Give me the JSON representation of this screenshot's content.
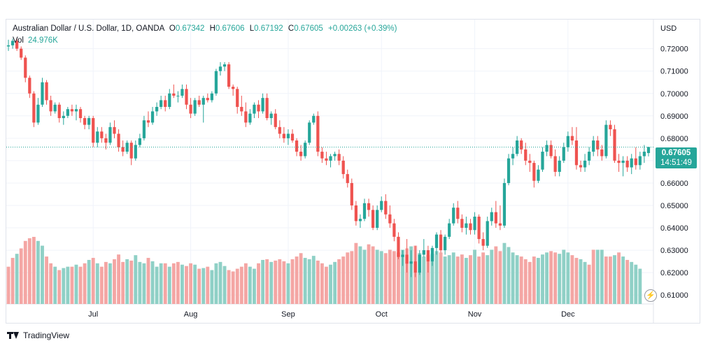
{
  "legend": {
    "symbol": "Australian Dollar / U.S. Dollar, 1D, OANDA",
    "open_label": "O",
    "open": "0.67342",
    "high_label": "H",
    "high": "0.67606",
    "low_label": "L",
    "low": "0.67192",
    "close_label": "C",
    "close": "0.67605",
    "change": "+0.00263 (+0.39%)",
    "vol_label": "Vol",
    "vol_value": "24.976K"
  },
  "axis": {
    "currency": "USD"
  },
  "last_price": {
    "price": "0.67605",
    "countdown": "14:51:49"
  },
  "footer": {
    "brand": "TradingView"
  },
  "colors": {
    "up": "#26a69a",
    "down": "#ef5350",
    "up_vol": "#8fd0c6",
    "down_vol": "#f4a6a4"
  },
  "chart_data": {
    "type": "candlestick",
    "title": "Australian Dollar / U.S. Dollar, 1D, OANDA",
    "ylabel": "USD",
    "ylim": [
      0.606,
      0.733
    ],
    "y_ticks": [
      "0.72000",
      "0.71000",
      "0.70000",
      "0.69000",
      "0.68000",
      "0.67000",
      "0.66000",
      "0.65000",
      "0.64000",
      "0.63000",
      "0.62000",
      "0.61000"
    ],
    "y_tick_values": [
      0.72,
      0.71,
      0.7,
      0.69,
      0.68,
      0.67,
      0.66,
      0.65,
      0.64,
      0.63,
      0.62,
      0.61
    ],
    "x_labels": [
      {
        "label": "Jul",
        "index": 20
      },
      {
        "label": "Aug",
        "index": 43
      },
      {
        "label": "Sep",
        "index": 66
      },
      {
        "label": "Oct",
        "index": 88
      },
      {
        "label": "Nov",
        "index": 110
      },
      {
        "label": "Dec",
        "index": 132
      }
    ],
    "last_price": 0.67605,
    "ohlc": [
      [
        0.721,
        0.724,
        0.719,
        0.7215
      ],
      [
        0.7215,
        0.7245,
        0.72,
        0.7235
      ],
      [
        0.7235,
        0.7248,
        0.719,
        0.72
      ],
      [
        0.72,
        0.721,
        0.715,
        0.716
      ],
      [
        0.716,
        0.717,
        0.705,
        0.707
      ],
      [
        0.707,
        0.708,
        0.698,
        0.7
      ],
      [
        0.7,
        0.701,
        0.685,
        0.687
      ],
      [
        0.687,
        0.698,
        0.686,
        0.695
      ],
      [
        0.695,
        0.707,
        0.694,
        0.705
      ],
      [
        0.705,
        0.706,
        0.695,
        0.697
      ],
      [
        0.697,
        0.699,
        0.69,
        0.692
      ],
      [
        0.692,
        0.696,
        0.691,
        0.695
      ],
      [
        0.695,
        0.696,
        0.687,
        0.689
      ],
      [
        0.689,
        0.692,
        0.686,
        0.69
      ],
      [
        0.69,
        0.694,
        0.689,
        0.693
      ],
      [
        0.693,
        0.695,
        0.69,
        0.692
      ],
      [
        0.692,
        0.695,
        0.688,
        0.693
      ],
      [
        0.693,
        0.694,
        0.687,
        0.689
      ],
      [
        0.689,
        0.69,
        0.684,
        0.686
      ],
      [
        0.686,
        0.69,
        0.684,
        0.689
      ],
      [
        0.689,
        0.69,
        0.676,
        0.678
      ],
      [
        0.678,
        0.685,
        0.676,
        0.683
      ],
      [
        0.683,
        0.685,
        0.678,
        0.68
      ],
      [
        0.68,
        0.682,
        0.675,
        0.678
      ],
      [
        0.678,
        0.687,
        0.677,
        0.685
      ],
      [
        0.685,
        0.688,
        0.68,
        0.682
      ],
      [
        0.682,
        0.684,
        0.674,
        0.676
      ],
      [
        0.676,
        0.679,
        0.672,
        0.674
      ],
      [
        0.674,
        0.679,
        0.673,
        0.678
      ],
      [
        0.678,
        0.679,
        0.668,
        0.671
      ],
      [
        0.671,
        0.679,
        0.67,
        0.677
      ],
      [
        0.677,
        0.682,
        0.676,
        0.68
      ],
      [
        0.68,
        0.69,
        0.679,
        0.688
      ],
      [
        0.688,
        0.692,
        0.685,
        0.687
      ],
      [
        0.687,
        0.694,
        0.686,
        0.692
      ],
      [
        0.692,
        0.696,
        0.69,
        0.694
      ],
      [
        0.694,
        0.699,
        0.693,
        0.697
      ],
      [
        0.697,
        0.699,
        0.692,
        0.694
      ],
      [
        0.694,
        0.702,
        0.693,
        0.7
      ],
      [
        0.7,
        0.704,
        0.698,
        0.699
      ],
      [
        0.699,
        0.701,
        0.696,
        0.699
      ],
      [
        0.699,
        0.704,
        0.698,
        0.702
      ],
      [
        0.702,
        0.704,
        0.693,
        0.695
      ],
      [
        0.695,
        0.698,
        0.689,
        0.691
      ],
      [
        0.691,
        0.698,
        0.69,
        0.697
      ],
      [
        0.697,
        0.699,
        0.694,
        0.695
      ],
      [
        0.695,
        0.699,
        0.687,
        0.698
      ],
      [
        0.698,
        0.7,
        0.696,
        0.697
      ],
      [
        0.697,
        0.701,
        0.696,
        0.7
      ],
      [
        0.7,
        0.711,
        0.699,
        0.71
      ],
      [
        0.71,
        0.714,
        0.708,
        0.712
      ],
      [
        0.712,
        0.714,
        0.71,
        0.713
      ],
      [
        0.713,
        0.714,
        0.702,
        0.703
      ],
      [
        0.703,
        0.704,
        0.699,
        0.702
      ],
      [
        0.702,
        0.703,
        0.691,
        0.694
      ],
      [
        0.694,
        0.699,
        0.69,
        0.692
      ],
      [
        0.692,
        0.696,
        0.685,
        0.687
      ],
      [
        0.687,
        0.693,
        0.686,
        0.691
      ],
      [
        0.691,
        0.696,
        0.689,
        0.695
      ],
      [
        0.695,
        0.697,
        0.689,
        0.692
      ],
      [
        0.692,
        0.7,
        0.691,
        0.698
      ],
      [
        0.698,
        0.7,
        0.688,
        0.689
      ],
      [
        0.689,
        0.692,
        0.686,
        0.691
      ],
      [
        0.691,
        0.693,
        0.684,
        0.685
      ],
      [
        0.685,
        0.688,
        0.68,
        0.682
      ],
      [
        0.682,
        0.685,
        0.678,
        0.68
      ],
      [
        0.68,
        0.684,
        0.677,
        0.682
      ],
      [
        0.682,
        0.684,
        0.678,
        0.679
      ],
      [
        0.679,
        0.68,
        0.672,
        0.674
      ],
      [
        0.674,
        0.677,
        0.67,
        0.672
      ],
      [
        0.672,
        0.679,
        0.671,
        0.678
      ],
      [
        0.678,
        0.688,
        0.677,
        0.687
      ],
      [
        0.687,
        0.691,
        0.686,
        0.69
      ],
      [
        0.69,
        0.692,
        0.672,
        0.674
      ],
      [
        0.674,
        0.676,
        0.669,
        0.671
      ],
      [
        0.671,
        0.674,
        0.668,
        0.67
      ],
      [
        0.67,
        0.673,
        0.667,
        0.672
      ],
      [
        0.672,
        0.674,
        0.67,
        0.673
      ],
      [
        0.673,
        0.675,
        0.668,
        0.67
      ],
      [
        0.67,
        0.672,
        0.662,
        0.664
      ],
      [
        0.664,
        0.666,
        0.658,
        0.66
      ],
      [
        0.66,
        0.662,
        0.648,
        0.65
      ],
      [
        0.65,
        0.652,
        0.641,
        0.643
      ],
      [
        0.643,
        0.646,
        0.64,
        0.644
      ],
      [
        0.644,
        0.653,
        0.643,
        0.651
      ],
      [
        0.651,
        0.653,
        0.645,
        0.648
      ],
      [
        0.648,
        0.65,
        0.639,
        0.64
      ],
      [
        0.64,
        0.65,
        0.639,
        0.648
      ],
      [
        0.648,
        0.654,
        0.647,
        0.652
      ],
      [
        0.652,
        0.655,
        0.644,
        0.646
      ],
      [
        0.646,
        0.65,
        0.64,
        0.642
      ],
      [
        0.642,
        0.644,
        0.634,
        0.636
      ],
      [
        0.636,
        0.638,
        0.626,
        0.627
      ],
      [
        0.627,
        0.63,
        0.623,
        0.628
      ],
      [
        0.628,
        0.635,
        0.62,
        0.624
      ],
      [
        0.624,
        0.63,
        0.618,
        0.625
      ],
      [
        0.625,
        0.632,
        0.618,
        0.62
      ],
      [
        0.62,
        0.63,
        0.619,
        0.628
      ],
      [
        0.628,
        0.635,
        0.627,
        0.63
      ],
      [
        0.63,
        0.632,
        0.62,
        0.625
      ],
      [
        0.625,
        0.632,
        0.623,
        0.631
      ],
      [
        0.631,
        0.638,
        0.628,
        0.637
      ],
      [
        0.637,
        0.639,
        0.629,
        0.63
      ],
      [
        0.63,
        0.637,
        0.628,
        0.636
      ],
      [
        0.636,
        0.644,
        0.635,
        0.642
      ],
      [
        0.642,
        0.651,
        0.641,
        0.649
      ],
      [
        0.649,
        0.652,
        0.642,
        0.644
      ],
      [
        0.644,
        0.646,
        0.638,
        0.64
      ],
      [
        0.64,
        0.645,
        0.637,
        0.642
      ],
      [
        0.642,
        0.644,
        0.637,
        0.639
      ],
      [
        0.639,
        0.647,
        0.637,
        0.645
      ],
      [
        0.645,
        0.646,
        0.633,
        0.635
      ],
      [
        0.635,
        0.638,
        0.63,
        0.632
      ],
      [
        0.632,
        0.645,
        0.631,
        0.643
      ],
      [
        0.643,
        0.649,
        0.641,
        0.647
      ],
      [
        0.647,
        0.652,
        0.64,
        0.642
      ],
      [
        0.642,
        0.65,
        0.639,
        0.641
      ],
      [
        0.641,
        0.662,
        0.64,
        0.66
      ],
      [
        0.66,
        0.673,
        0.659,
        0.671
      ],
      [
        0.671,
        0.676,
        0.668,
        0.673
      ],
      [
        0.673,
        0.681,
        0.672,
        0.679
      ],
      [
        0.679,
        0.68,
        0.673,
        0.675
      ],
      [
        0.675,
        0.678,
        0.668,
        0.67
      ],
      [
        0.67,
        0.673,
        0.665,
        0.669
      ],
      [
        0.669,
        0.67,
        0.658,
        0.661
      ],
      [
        0.661,
        0.668,
        0.66,
        0.666
      ],
      [
        0.666,
        0.676,
        0.665,
        0.674
      ],
      [
        0.674,
        0.679,
        0.672,
        0.677
      ],
      [
        0.677,
        0.679,
        0.671,
        0.672
      ],
      [
        0.672,
        0.675,
        0.663,
        0.665
      ],
      [
        0.665,
        0.672,
        0.663,
        0.67
      ],
      [
        0.67,
        0.678,
        0.669,
        0.676
      ],
      [
        0.676,
        0.683,
        0.674,
        0.681
      ],
      [
        0.681,
        0.685,
        0.677,
        0.679
      ],
      [
        0.679,
        0.685,
        0.666,
        0.668
      ],
      [
        0.668,
        0.67,
        0.665,
        0.667
      ],
      [
        0.667,
        0.673,
        0.665,
        0.67
      ],
      [
        0.67,
        0.676,
        0.668,
        0.674
      ],
      [
        0.674,
        0.681,
        0.672,
        0.679
      ],
      [
        0.679,
        0.681,
        0.672,
        0.675
      ],
      [
        0.675,
        0.677,
        0.67,
        0.672
      ],
      [
        0.672,
        0.688,
        0.671,
        0.686
      ],
      [
        0.686,
        0.688,
        0.681,
        0.684
      ],
      [
        0.684,
        0.686,
        0.669,
        0.67
      ],
      [
        0.67,
        0.673,
        0.665,
        0.669
      ],
      [
        0.669,
        0.672,
        0.663,
        0.67
      ],
      [
        0.67,
        0.672,
        0.665,
        0.667
      ],
      [
        0.667,
        0.673,
        0.664,
        0.671
      ],
      [
        0.671,
        0.676,
        0.666,
        0.668
      ],
      [
        0.668,
        0.674,
        0.666,
        0.672
      ],
      [
        0.672,
        0.677,
        0.669,
        0.674
      ],
      [
        0.6734,
        0.6761,
        0.6719,
        0.6761
      ]
    ],
    "volume": [
      0.55,
      0.68,
      0.74,
      0.82,
      0.93,
      0.97,
      0.99,
      0.93,
      0.86,
      0.7,
      0.6,
      0.55,
      0.5,
      0.53,
      0.55,
      0.55,
      0.58,
      0.55,
      0.6,
      0.65,
      0.68,
      0.6,
      0.55,
      0.62,
      0.6,
      0.66,
      0.73,
      0.62,
      0.66,
      0.64,
      0.72,
      0.62,
      0.6,
      0.68,
      0.63,
      0.55,
      0.6,
      0.6,
      0.55,
      0.6,
      0.62,
      0.58,
      0.56,
      0.6,
      0.58,
      0.52,
      0.53,
      0.55,
      0.5,
      0.6,
      0.62,
      0.56,
      0.5,
      0.48,
      0.52,
      0.55,
      0.6,
      0.55,
      0.52,
      0.6,
      0.65,
      0.66,
      0.62,
      0.64,
      0.66,
      0.63,
      0.6,
      0.66,
      0.7,
      0.75,
      0.68,
      0.66,
      0.71,
      0.64,
      0.6,
      0.55,
      0.58,
      0.62,
      0.66,
      0.7,
      0.76,
      0.78,
      0.9,
      0.85,
      0.8,
      0.88,
      0.85,
      0.8,
      0.78,
      0.75,
      0.8,
      0.78,
      0.76,
      0.8,
      0.82,
      0.85,
      0.86,
      0.75,
      0.7,
      0.72,
      0.74,
      0.78,
      0.76,
      0.7,
      0.72,
      0.76,
      0.7,
      0.73,
      0.68,
      0.72,
      0.8,
      0.7,
      0.76,
      0.72,
      0.8,
      0.85,
      0.78,
      0.9,
      0.84,
      0.76,
      0.72,
      0.7,
      0.66,
      0.62,
      0.7,
      0.68,
      0.73,
      0.76,
      0.78,
      0.76,
      0.74,
      0.8,
      0.76,
      0.72,
      0.68,
      0.66,
      0.62,
      0.58,
      0.8,
      0.8,
      0.8,
      0.7,
      0.7,
      0.72,
      0.76,
      0.7,
      0.65,
      0.62,
      0.58,
      0.52
    ],
    "volume_up": [
      false,
      false,
      true,
      false,
      false,
      false,
      false,
      true,
      true,
      false,
      false,
      true,
      false,
      true,
      true,
      false,
      true,
      false,
      false,
      true,
      false,
      true,
      false,
      false,
      true,
      false,
      false,
      false,
      true,
      false,
      true,
      true,
      true,
      false,
      true,
      true,
      true,
      false,
      true,
      false,
      false,
      true,
      false,
      false,
      true,
      false,
      true,
      false,
      true,
      true,
      true,
      true,
      false,
      false,
      false,
      false,
      false,
      true,
      true,
      false,
      true,
      false,
      true,
      false,
      false,
      false,
      true,
      false,
      false,
      false,
      true,
      true,
      true,
      false,
      false,
      false,
      true,
      true,
      false,
      false,
      false,
      false,
      false,
      true,
      true,
      false,
      false,
      true,
      true,
      false,
      false,
      false,
      false,
      true,
      false,
      true,
      false,
      true,
      true,
      false,
      true,
      true,
      false,
      true,
      true,
      true,
      false,
      false,
      true,
      false,
      true,
      false,
      false,
      true,
      true,
      false,
      false,
      true,
      true,
      true,
      true,
      false,
      false,
      false,
      false,
      true,
      true,
      true,
      false,
      false,
      true,
      true,
      true,
      false,
      false,
      true,
      true,
      false,
      false,
      true,
      true,
      false,
      false,
      true,
      false,
      true,
      false,
      true,
      true,
      true
    ]
  }
}
